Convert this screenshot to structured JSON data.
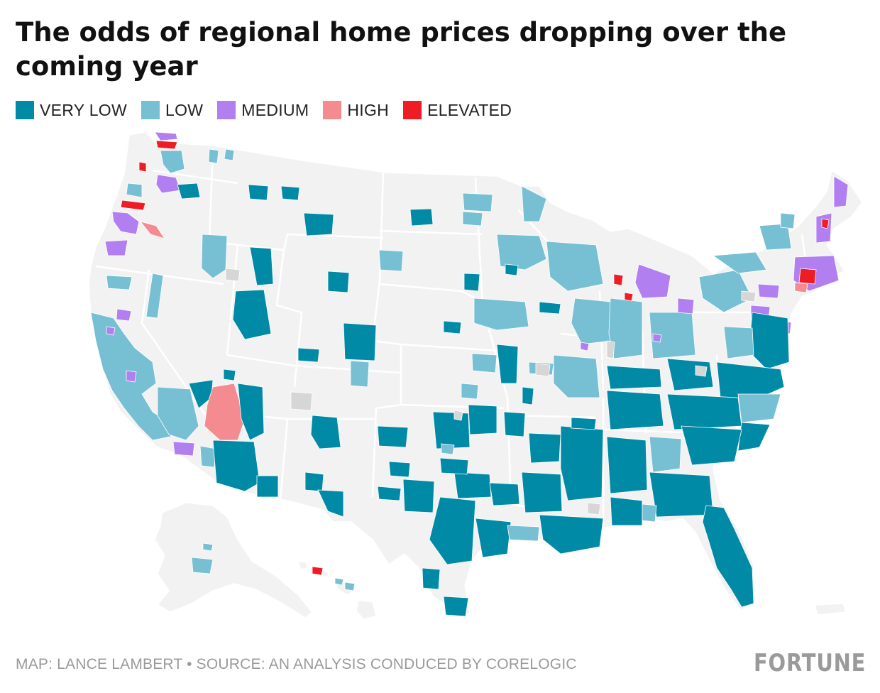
{
  "title": "The odds of regional home prices dropping over the coming year",
  "legend": [
    {
      "label": "VERY LOW",
      "color": "#008aa6"
    },
    {
      "label": "LOW",
      "color": "#77bfd3"
    },
    {
      "label": "MEDIUM",
      "color": "#b27ff0"
    },
    {
      "label": "HIGH",
      "color": "#f38b90"
    },
    {
      "label": "ELEVATED",
      "color": "#ee1c25"
    }
  ],
  "colors": {
    "land": "#f2f2f2",
    "borders": "#ffffff",
    "no_data": "#d6d6d6"
  },
  "footer": {
    "source": "MAP: LANCE LAMBERT • SOURCE: AN ANALYSIS CONDUCED BY CORELOGIC",
    "brand": "FORTUNE"
  }
}
